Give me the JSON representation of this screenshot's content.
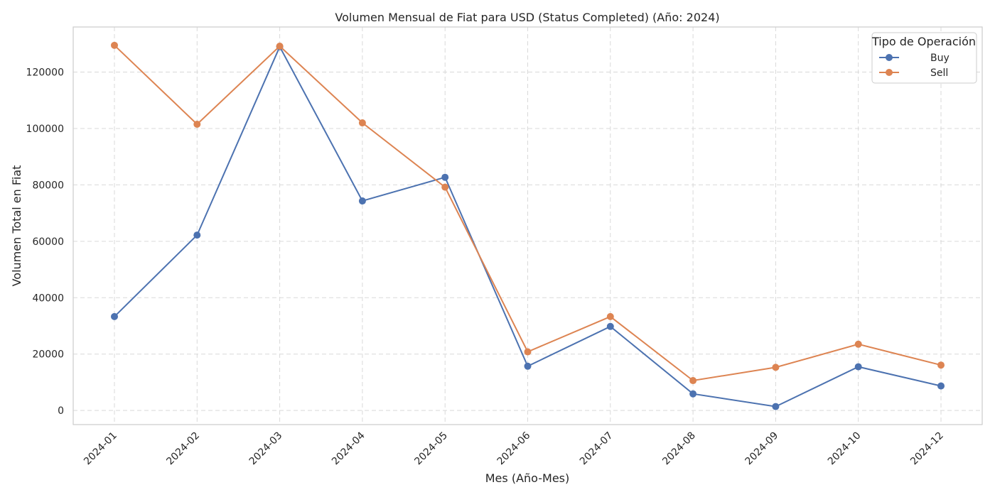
{
  "chart_data": {
    "type": "line",
    "title": "Volumen Mensual de Fiat para USD (Status Completed) (Año: 2024)",
    "xlabel": "Mes (Año-Mes)",
    "ylabel": "Volumen Total en Fiat",
    "categories": [
      "2024-01",
      "2024-02",
      "2024-03",
      "2024-04",
      "2024-05",
      "2024-06",
      "2024-07",
      "2024-08",
      "2024-09",
      "2024-10",
      "2024-12"
    ],
    "ylim": [
      -5000,
      136000
    ],
    "yticks": [
      0,
      20000,
      40000,
      60000,
      80000,
      100000,
      120000
    ],
    "grid": true,
    "legend": {
      "title": "Tipo de Operación",
      "placement": "top-right"
    },
    "series": [
      {
        "name": "Buy",
        "color": "#4c72b0",
        "values": [
          33300,
          62200,
          129000,
          74300,
          82700,
          15700,
          29800,
          5900,
          1400,
          15500,
          8700
        ]
      },
      {
        "name": "Sell",
        "color": "#dd8452",
        "values": [
          129500,
          101500,
          129200,
          102000,
          79200,
          20800,
          33300,
          10600,
          15300,
          23500,
          16100
        ]
      }
    ]
  }
}
